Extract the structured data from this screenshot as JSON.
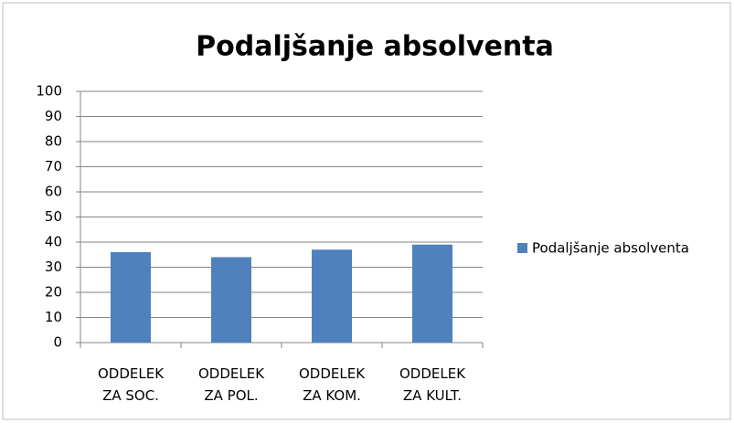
{
  "chart_data": {
    "type": "bar",
    "title": "Podaljšanje absolventa",
    "categories": [
      "ODDELEK ZA SOC.",
      "ODDELEK ZA POL.",
      "ODDELEK ZA KOM.",
      "ODDELEK ZA KULT."
    ],
    "series": [
      {
        "name": "Podaljšanje absolventa",
        "color": "#4f81bd",
        "values": [
          36,
          34,
          37,
          39
        ]
      }
    ],
    "ylim": [
      0,
      100
    ],
    "yticks": [
      0,
      10,
      20,
      30,
      40,
      50,
      60,
      70,
      80,
      90,
      100
    ],
    "grid": true,
    "legend": "right"
  }
}
